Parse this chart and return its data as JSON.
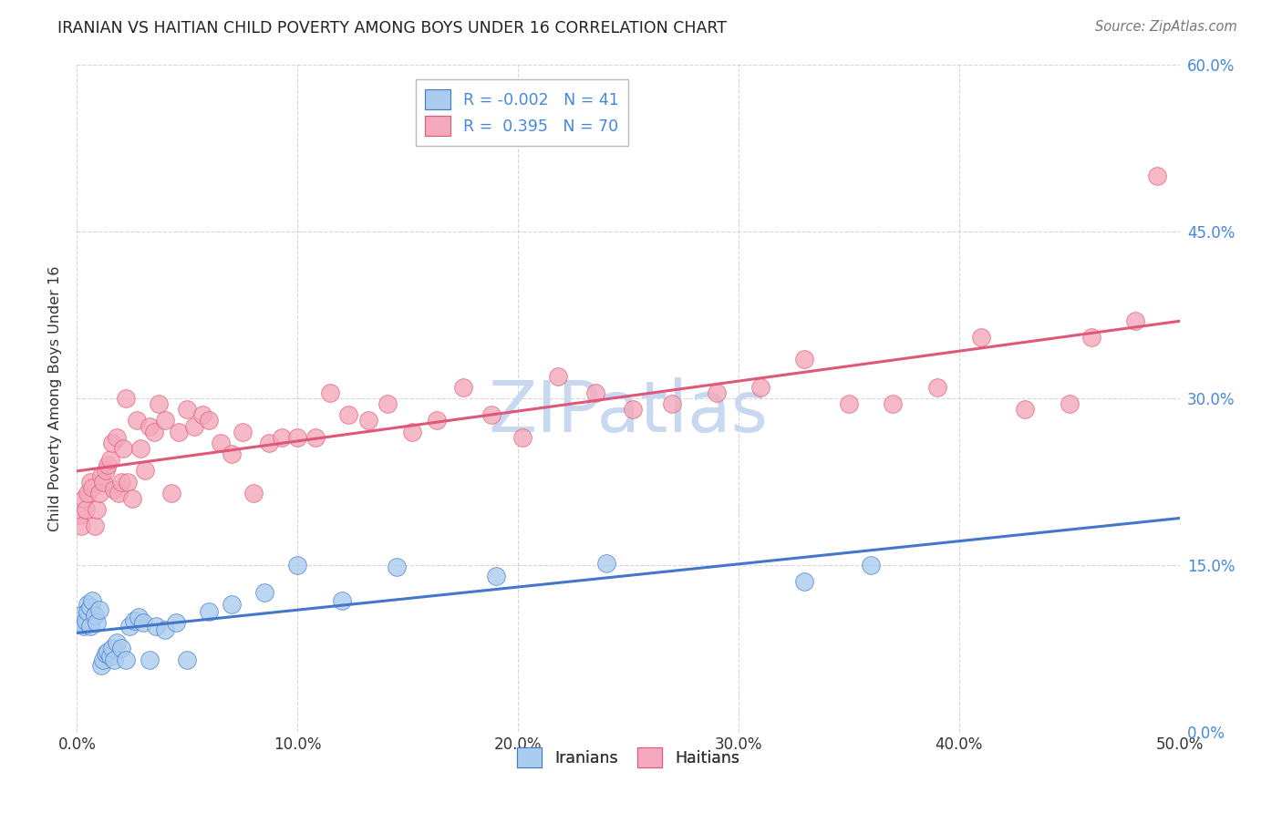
{
  "title": "IRANIAN VS HAITIAN CHILD POVERTY AMONG BOYS UNDER 16 CORRELATION CHART",
  "source": "Source: ZipAtlas.com",
  "ylabel_label": "Child Poverty Among Boys Under 16",
  "legend_label1": "Iranians",
  "legend_label2": "Haitians",
  "R_iranian": -0.002,
  "N_iranian": 41,
  "R_haitian": 0.395,
  "N_haitian": 70,
  "xlim": [
    0.0,
    0.5
  ],
  "ylim": [
    0.0,
    0.6
  ],
  "color_iranian": "#aaccee",
  "color_haitian": "#f4a8bb",
  "line_color_iranian": "#4477cc",
  "line_color_haitian": "#e05878",
  "background_color": "#ffffff",
  "grid_color": "#bbbbbb",
  "title_color": "#222222",
  "right_tick_color": "#4488dd",
  "watermark_color": "#c8d8f0",
  "iranians_x": [
    0.001,
    0.002,
    0.003,
    0.004,
    0.005,
    0.005,
    0.006,
    0.006,
    0.007,
    0.008,
    0.009,
    0.01,
    0.011,
    0.012,
    0.013,
    0.014,
    0.015,
    0.016,
    0.017,
    0.018,
    0.02,
    0.022,
    0.024,
    0.026,
    0.028,
    0.03,
    0.033,
    0.036,
    0.04,
    0.045,
    0.05,
    0.06,
    0.07,
    0.085,
    0.1,
    0.12,
    0.145,
    0.19,
    0.24,
    0.33,
    0.36
  ],
  "iranians_y": [
    0.1,
    0.105,
    0.095,
    0.1,
    0.115,
    0.108,
    0.112,
    0.095,
    0.118,
    0.105,
    0.098,
    0.11,
    0.06,
    0.065,
    0.07,
    0.072,
    0.068,
    0.075,
    0.065,
    0.08,
    0.075,
    0.065,
    0.095,
    0.1,
    0.103,
    0.098,
    0.065,
    0.095,
    0.092,
    0.098,
    0.065,
    0.108,
    0.115,
    0.125,
    0.15,
    0.118,
    0.148,
    0.14,
    0.152,
    0.135,
    0.15
  ],
  "haitians_x": [
    0.001,
    0.002,
    0.003,
    0.004,
    0.005,
    0.006,
    0.007,
    0.008,
    0.009,
    0.01,
    0.011,
    0.012,
    0.013,
    0.014,
    0.015,
    0.016,
    0.017,
    0.018,
    0.019,
    0.02,
    0.021,
    0.022,
    0.023,
    0.025,
    0.027,
    0.029,
    0.031,
    0.033,
    0.035,
    0.037,
    0.04,
    0.043,
    0.046,
    0.05,
    0.053,
    0.057,
    0.06,
    0.065,
    0.07,
    0.075,
    0.08,
    0.087,
    0.093,
    0.1,
    0.108,
    0.115,
    0.123,
    0.132,
    0.141,
    0.152,
    0.163,
    0.175,
    0.188,
    0.202,
    0.218,
    0.235,
    0.252,
    0.27,
    0.29,
    0.31,
    0.33,
    0.35,
    0.37,
    0.39,
    0.41,
    0.43,
    0.45,
    0.46,
    0.48,
    0.49
  ],
  "haitians_y": [
    0.195,
    0.185,
    0.21,
    0.2,
    0.215,
    0.225,
    0.22,
    0.185,
    0.2,
    0.215,
    0.23,
    0.225,
    0.235,
    0.24,
    0.245,
    0.26,
    0.218,
    0.265,
    0.215,
    0.225,
    0.255,
    0.3,
    0.225,
    0.21,
    0.28,
    0.255,
    0.235,
    0.275,
    0.27,
    0.295,
    0.28,
    0.215,
    0.27,
    0.29,
    0.275,
    0.285,
    0.28,
    0.26,
    0.25,
    0.27,
    0.215,
    0.26,
    0.265,
    0.265,
    0.265,
    0.305,
    0.285,
    0.28,
    0.295,
    0.27,
    0.28,
    0.31,
    0.285,
    0.265,
    0.32,
    0.305,
    0.29,
    0.295,
    0.305,
    0.31,
    0.335,
    0.295,
    0.295,
    0.31,
    0.355,
    0.29,
    0.295,
    0.355,
    0.37,
    0.5
  ]
}
